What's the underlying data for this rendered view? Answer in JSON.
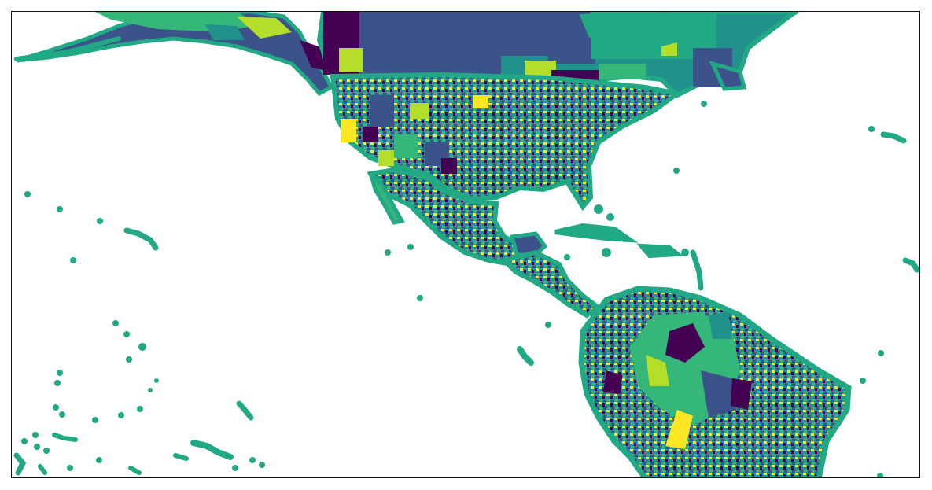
{
  "map": {
    "projection": "plate-carree",
    "extent": {
      "lon": [
        -180,
        -30
      ],
      "lat": [
        -15,
        60
      ]
    },
    "colormap": "viridis",
    "fill_kind": "choropleth of administrative subdivisions (no legend shown)",
    "coastline_color": "#21a884",
    "colors": {
      "purple": "#440154",
      "indigo": "#3b528b",
      "teal": "#21918c",
      "green": "#35b779",
      "yellow": "#fde725",
      "lime": "#b5de2b",
      "frame": "#111111"
    },
    "axes_visible": false,
    "legend": "none",
    "regions": [
      "alaska",
      "canada",
      "united-states",
      "mexico",
      "central-america",
      "caribbean",
      "south-america",
      "hawaii",
      "pacific-islands"
    ]
  }
}
